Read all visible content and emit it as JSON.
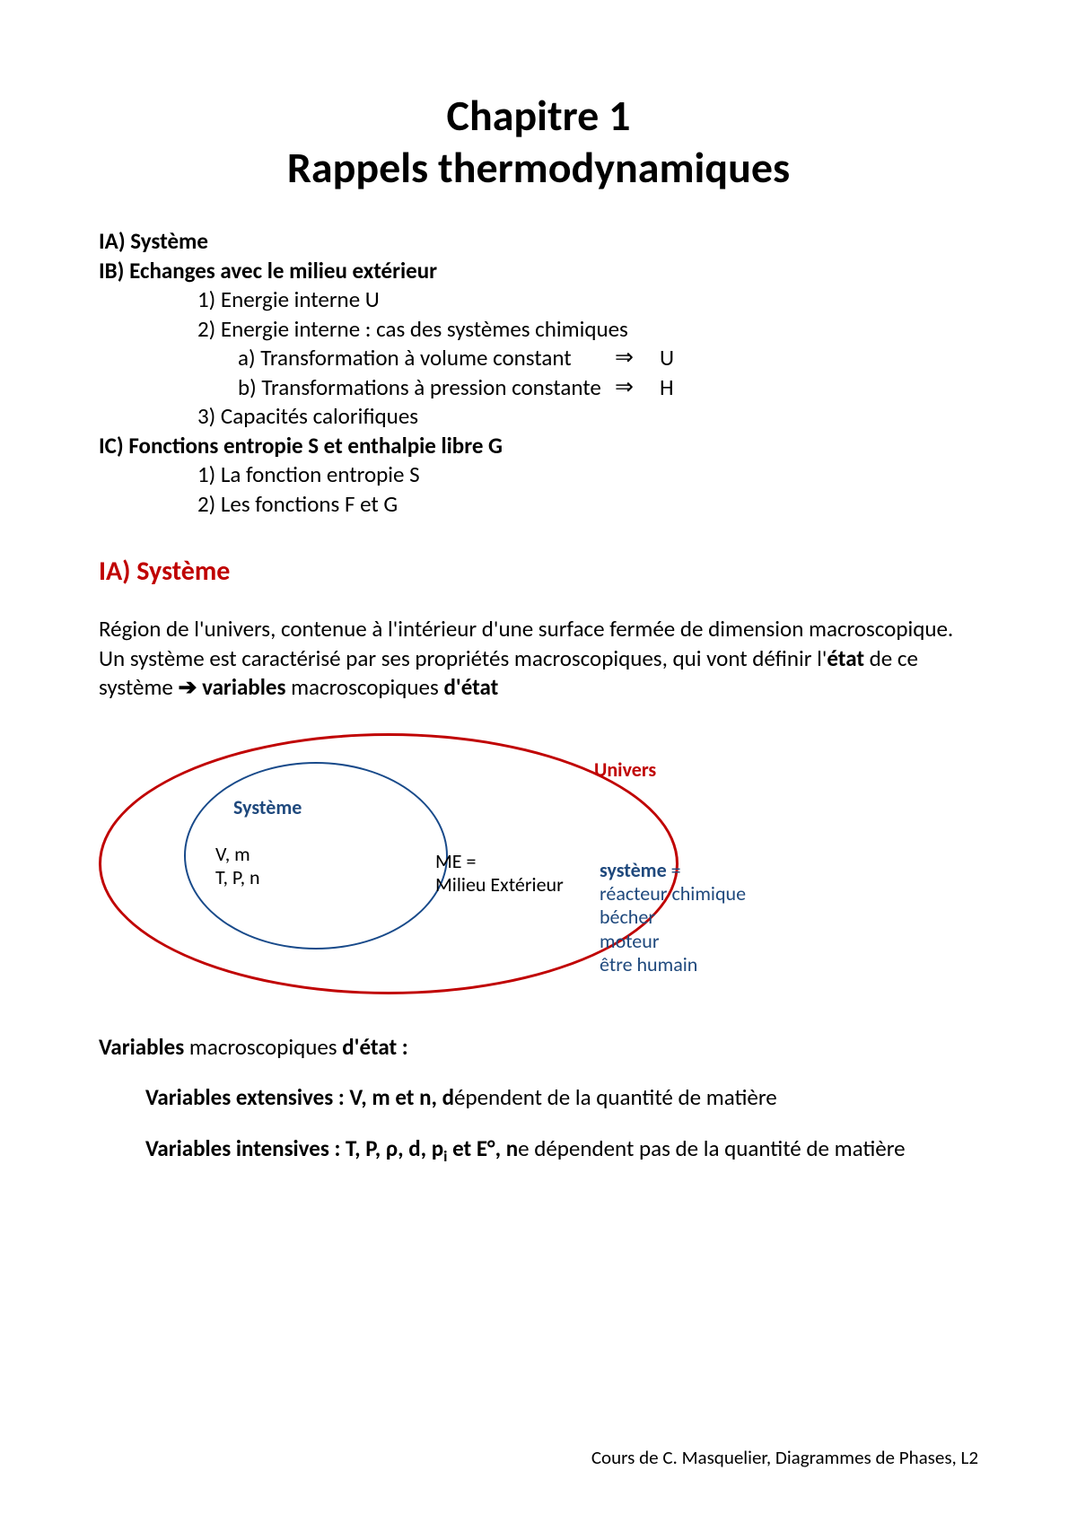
{
  "title_line1": "Chapitre 1",
  "title_line2": "Rappels thermodynamiques",
  "outline": {
    "ia": "IA) Système",
    "ib": "IB) Echanges avec le milieu extérieur",
    "ib1": "1)  Energie interne U",
    "ib2": "2)  Energie interne : cas des systèmes chimiques",
    "ib2a": "a)  Transformation à volume constant",
    "ib2a_arrow": "⇒",
    "ib2a_sym": "U",
    "ib2b": "b)  Transformations à pression constante",
    "ib2b_arrow": "⇒",
    "ib2b_sym": "H",
    "ib3": "3)  Capacités calorifiques",
    "ic": "IC) Fonctions entropie S et enthalpie libre G",
    "ic1": "1)  La fonction entropie S",
    "ic2": "2)  Les fonctions F et G"
  },
  "section_ia_title": "IA) Système",
  "paragraph": {
    "p1": "Région de l'univers, contenue à l'intérieur d'une surface fermée de dimension macroscopique. Un système est caractérisé par ses propriétés macroscopiques, qui vont définir l'",
    "p1_b1": "état",
    "p1_mid": " de ce système ",
    "arrow": "➔",
    "p1_b2": "variables",
    "p1_mid2": " macroscopiques ",
    "p1_b3": "d'état"
  },
  "diagram": {
    "outer_color": "#c00000",
    "inner_color": "#184a8a",
    "label_univers": "Univers",
    "label_systeme": "Système",
    "vars_line1": "V, m",
    "vars_line2": "T, P, n",
    "me_line1": "ME =",
    "me_line2": "Milieu Extérieur",
    "ex_head": "système",
    "ex_eq": " =",
    "ex1": "réacteur chimique",
    "ex2": "bécher",
    "ex3": "moteur",
    "ex4": "être humain"
  },
  "vars_block": {
    "head_b1": "Variables",
    "head_mid": " macroscopiques ",
    "head_b2": "d'état :",
    "ext_b": "Variables extensives : V, m et n, d",
    "ext_rest": "épendent de la quantité de matière",
    "int_b": "Variables intensives : T, P, ρ, d, p",
    "int_sub": "i",
    "int_b2": " et E°, n",
    "int_rest": "e dépendent pas de la quantité de matière"
  },
  "footer": "Cours de C. Masquelier, Diagrammes de Phases, L2"
}
